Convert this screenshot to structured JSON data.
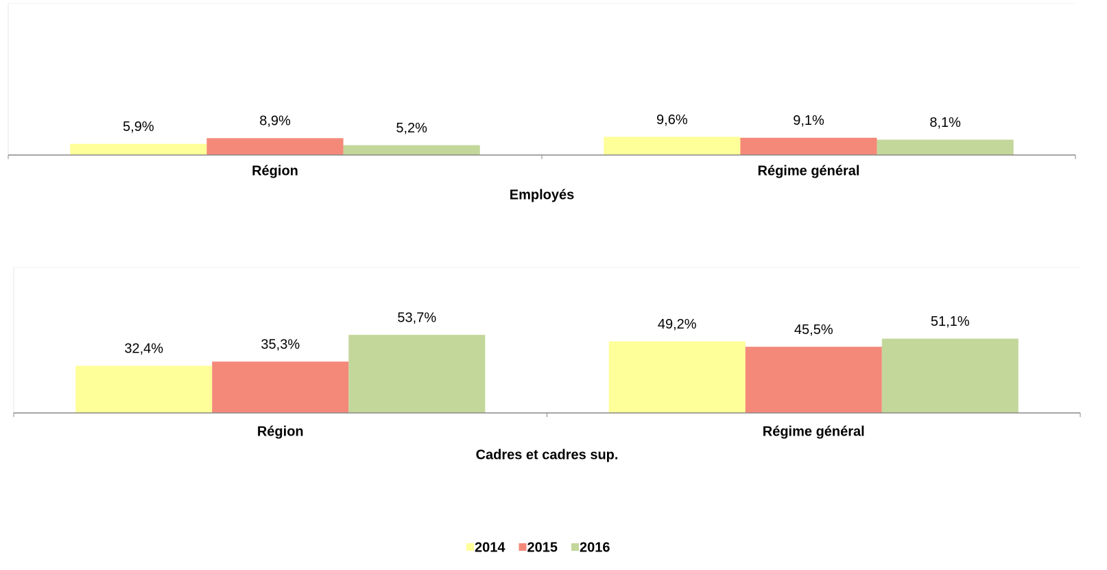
{
  "chart_data": [
    {
      "type": "bar",
      "xlabel": "Employés",
      "categories": [
        "Région",
        "Régime général"
      ],
      "series": [
        {
          "name": "2014",
          "color": "#ffff99",
          "values": [
            5.9,
            9.6
          ],
          "value_labels": [
            "5,9%",
            "9,6%"
          ]
        },
        {
          "name": "2015",
          "color": "#f4897a",
          "values": [
            8.9,
            9.1
          ],
          "value_labels": [
            "8,9%",
            "9,1%"
          ]
        },
        {
          "name": "2016",
          "color": "#c4d79b",
          "values": [
            5.2,
            8.1
          ],
          "value_labels": [
            "5,2%",
            "8,1%"
          ]
        }
      ],
      "ylim": [
        0,
        80
      ]
    },
    {
      "type": "bar",
      "xlabel": "Cadres et cadres sup.",
      "categories": [
        "Région",
        "Régime général"
      ],
      "series": [
        {
          "color": "#ffff99",
          "values": [
            32.4,
            49.2
          ],
          "value_labels": [
            "32,4%",
            "49,2%"
          ]
        },
        {
          "color": "#f4897a",
          "values": [
            35.3,
            45.5
          ],
          "value_labels": [
            "35,3%",
            "45,5%"
          ]
        },
        {
          "color": "#c4d79b",
          "values": [
            53.7,
            51.1
          ],
          "value_labels": [
            "53,7%",
            "51,1%"
          ]
        }
      ],
      "ylim": [
        0,
        100
      ]
    }
  ]
}
